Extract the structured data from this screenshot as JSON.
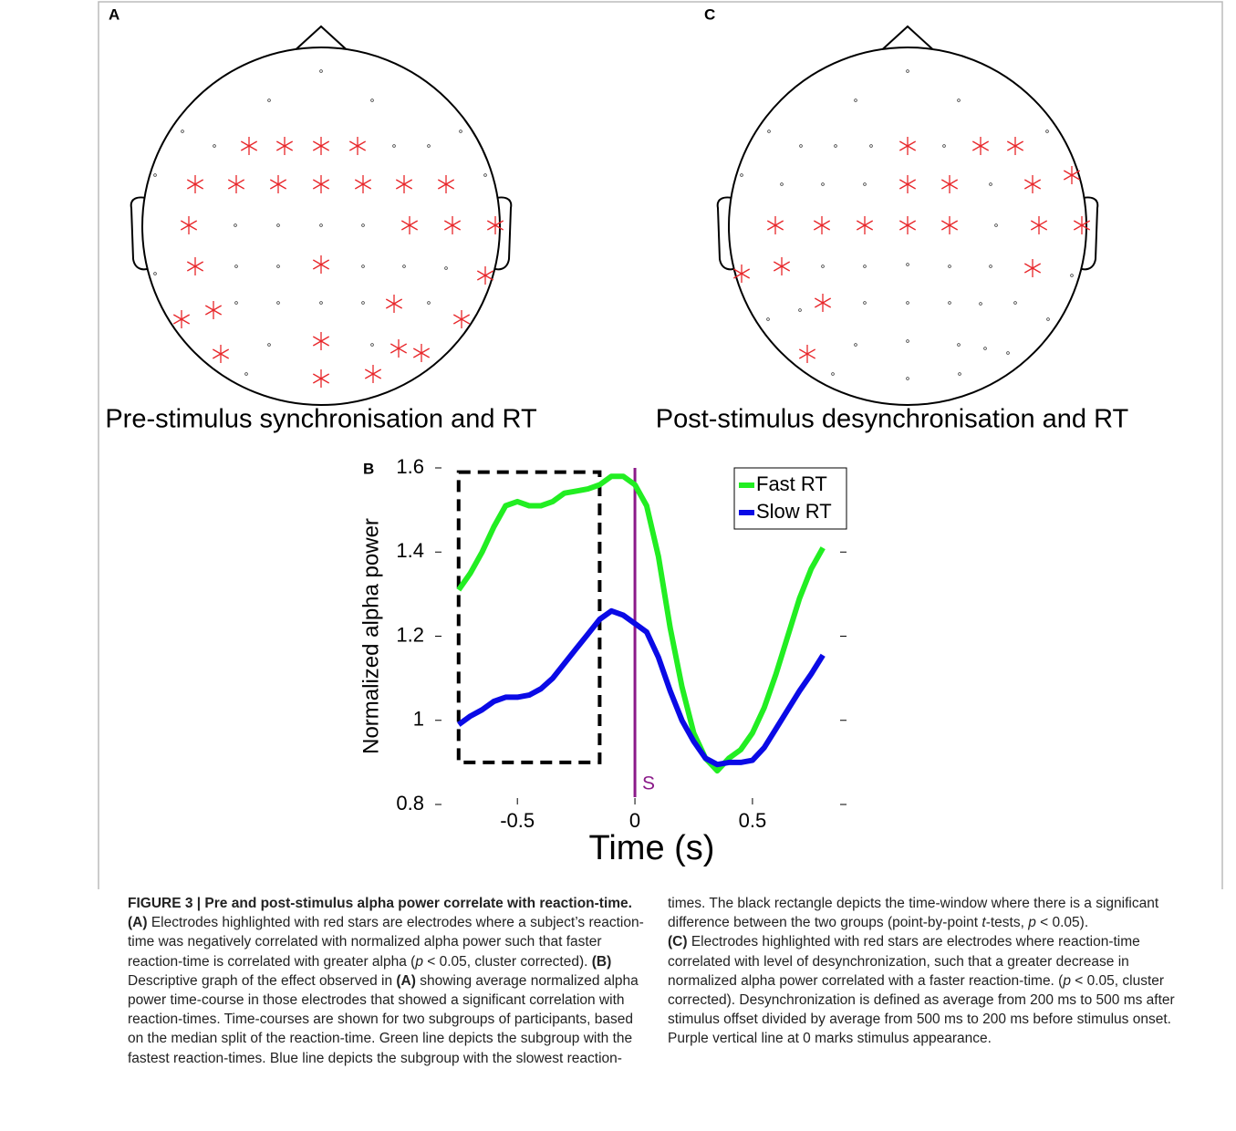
{
  "panels": [
    {
      "letter": "A",
      "caption": "Pre-stimulus synchronisation and RT"
    },
    {
      "letter": "C",
      "caption": "Post-stimulus desynchronisation and RT"
    }
  ],
  "chart_data": {
    "type": "line",
    "panel_letter": "B",
    "x_label": "Time (s)",
    "y_label": "Normalized alpha power",
    "x": [
      -0.75,
      -0.7,
      -0.65,
      -0.6,
      -0.55,
      -0.5,
      -0.45,
      -0.4,
      -0.35,
      -0.3,
      -0.25,
      -0.2,
      -0.15,
      -0.1,
      -0.05,
      0,
      0.05,
      0.1,
      0.15,
      0.2,
      0.25,
      0.3,
      0.35,
      0.4,
      0.45,
      0.5,
      0.55,
      0.6,
      0.65,
      0.7,
      0.75,
      0.8
    ],
    "series": [
      {
        "name": "Fast RT",
        "color": "#22ee22",
        "values": [
          1.31,
          1.35,
          1.4,
          1.46,
          1.51,
          1.52,
          1.51,
          1.51,
          1.52,
          1.54,
          1.545,
          1.55,
          1.56,
          1.58,
          1.58,
          1.56,
          1.51,
          1.39,
          1.22,
          1.08,
          0.97,
          0.91,
          0.88,
          0.91,
          0.93,
          0.97,
          1.03,
          1.11,
          1.2,
          1.29,
          1.36,
          1.41
        ]
      },
      {
        "name": "Slow RT",
        "color": "#0a0ae6",
        "values": [
          0.99,
          1.01,
          1.025,
          1.045,
          1.055,
          1.055,
          1.06,
          1.075,
          1.1,
          1.135,
          1.17,
          1.205,
          1.24,
          1.26,
          1.25,
          1.23,
          1.21,
          1.15,
          1.07,
          1.0,
          0.95,
          0.91,
          0.895,
          0.9,
          0.9,
          0.905,
          0.935,
          0.98,
          1.025,
          1.07,
          1.11,
          1.155
        ]
      }
    ],
    "xlim": [
      -0.85,
      0.9
    ],
    "ylim": [
      0.8,
      1.6
    ],
    "xticks": [
      -0.5,
      0,
      0.5
    ],
    "yticks": [
      0.8,
      1,
      1.2,
      1.4,
      1.6
    ],
    "window": {
      "x": [
        -0.75,
        -0.15
      ],
      "y": [
        0.9,
        1.59
      ]
    },
    "stimulus": {
      "x": 0,
      "label": "S",
      "color": "#8b1a89"
    },
    "legend": "top-right"
  },
  "figure_caption": {
    "paragraphs": [
      [
        {
          "b": "FIGURE 3 | Pre and post-stimulus alpha power correlate with reaction-time."
        },
        " ",
        {
          "b": "(A)"
        },
        " Electrodes highlighted with red stars are electrodes where a subject’s reaction-time was negatively correlated with normalized alpha power such that faster reaction-time is correlated with greater alpha (",
        {
          "i": "p"
        },
        " < 0.05, cluster corrected). ",
        {
          "b": "(B)"
        },
        " Descriptive graph of the effect observed in ",
        {
          "b": "(A)"
        },
        " showing average normalized alpha power time-course in those electrodes that showed a significant correlation with reaction-times. Time-courses are shown for two subgroups of participants, based on the median split of the reaction-time. Green line depicts the subgroup with the fastest reaction-times. Blue line depicts the subgroup with the slowest reaction-times. The black rectangle depicts the time-window where there is a significant difference between the two groups (point-by-point ",
        {
          "i": "t"
        },
        "-tests, ",
        {
          "i": "p"
        },
        " < 0.05)."
      ],
      [
        {
          "b": "(C)"
        },
        " Electrodes highlighted with red stars are electrodes where reaction-time correlated with level of desynchronization, such that a greater decrease in normalized alpha power correlated with a faster reaction-time. (",
        {
          "i": "p"
        },
        " < 0.05, cluster corrected). Desynchronization is defined as average from 200 ms to 500 ms after stimulus offset divided by average from 500 ms to 200 ms before stimulus onset. Purple vertical line at 0 marks stimulus appearance."
      ]
    ]
  }
}
